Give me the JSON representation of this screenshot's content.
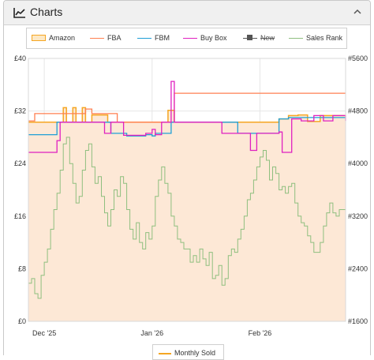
{
  "panel": {
    "title": "Charts",
    "title_icon": "line-chart-icon",
    "collapse_icon": "chevron-up-icon"
  },
  "chart_data": {
    "type": "line",
    "y_left": {
      "range": [
        0,
        40
      ],
      "ticks": [
        0,
        8,
        16,
        24,
        32,
        40
      ],
      "tick_labels": [
        "£0",
        "£8",
        "£16",
        "£24",
        "£32",
        "£40"
      ]
    },
    "y_right": {
      "range": [
        1600,
        5600
      ],
      "ticks": [
        1600,
        2400,
        3200,
        4000,
        4800,
        5600
      ],
      "tick_labels": [
        "#1600",
        "#2400",
        "#3200",
        "#4000",
        "#4800",
        "#5600"
      ]
    },
    "x_axis": {
      "range": [
        0,
        100
      ],
      "ticks": [
        5,
        39,
        73
      ],
      "tick_labels": [
        "Dec '25",
        "Jan '26",
        "Feb '26"
      ]
    },
    "grid": true,
    "legend": [
      {
        "name": "Amazon",
        "color": "#f5a623",
        "style": "area"
      },
      {
        "name": "FBA",
        "color": "#ff7f50",
        "style": "line"
      },
      {
        "name": "FBM",
        "color": "#1f9fd6",
        "style": "line"
      },
      {
        "name": "Buy Box",
        "color": "#e020c0",
        "style": "line"
      },
      {
        "name": "New",
        "color": "#555555",
        "style": "marker",
        "disabled": true
      },
      {
        "name": "Sales Rank",
        "color": "#8fbf7f",
        "style": "line"
      }
    ],
    "bottom_legend": [
      {
        "name": "Monthly Sold",
        "color": "#f5a623"
      }
    ],
    "series": [
      {
        "name": "Amazon",
        "axis": "left",
        "x": [
          0,
          2,
          10,
          11,
          12,
          14,
          15,
          17,
          18,
          20,
          24,
          25,
          26,
          30,
          37,
          42,
          44,
          46,
          55,
          57,
          66,
          76,
          79,
          82,
          85,
          88,
          92,
          99,
          100
        ],
        "y": [
          30.3,
          30.3,
          30.3,
          32.5,
          30.3,
          32.5,
          30.3,
          32.5,
          30.3,
          31.4,
          31.4,
          30.3,
          30.3,
          30.3,
          30.3,
          30.3,
          32.1,
          30.3,
          30.3,
          30.3,
          30.3,
          30.3,
          30.8,
          31.3,
          31.4,
          30.4,
          31.3,
          31.3,
          31.3
        ]
      },
      {
        "name": "FBA",
        "axis": "left",
        "x": [
          0,
          2,
          9,
          18,
          20,
          25,
          28,
          37,
          42,
          44,
          46,
          56,
          66,
          70,
          75,
          79,
          80,
          81,
          100
        ],
        "y": [
          30.5,
          31.6,
          31.6,
          32.3,
          31.6,
          31.6,
          30.3,
          30.3,
          30.3,
          30.3,
          34.7,
          34.7,
          34.7,
          34.7,
          34.7,
          34.7,
          34.7,
          34.7,
          34.7
        ]
      },
      {
        "name": "FBM",
        "axis": "left",
        "x": [
          0,
          7,
          9,
          18,
          26,
          31,
          34,
          37,
          39,
          40,
          45,
          46,
          56,
          57,
          61,
          66,
          69,
          70,
          71,
          72,
          76,
          79,
          82,
          87,
          92,
          100
        ],
        "y": [
          28.4,
          28.4,
          30.3,
          30.3,
          28.6,
          28.2,
          28.2,
          28.4,
          28.2,
          28.6,
          30.3,
          30.3,
          30.3,
          30.3,
          30.3,
          28.6,
          28.6,
          28.6,
          28.6,
          28.6,
          28.6,
          30.8,
          31.0,
          31.0,
          31.0,
          31.0
        ]
      },
      {
        "name": "Buy Box",
        "axis": "left",
        "x": [
          0,
          7,
          9,
          10,
          12,
          18,
          24,
          26,
          30,
          33,
          35,
          37,
          39,
          40,
          42,
          45,
          46,
          47,
          55,
          57,
          61,
          66,
          69,
          70,
          72,
          75,
          78,
          79,
          80,
          83,
          86,
          90,
          93,
          96,
          100
        ],
        "y": [
          25.7,
          25.7,
          27.5,
          30.3,
          30.3,
          30.3,
          28.6,
          30.3,
          28.3,
          28.3,
          28.3,
          28.6,
          29.2,
          28.4,
          30.3,
          36.5,
          30.3,
          30.3,
          30.3,
          30.3,
          28.6,
          28.6,
          28.6,
          26.0,
          28.6,
          28.6,
          28.6,
          28.8,
          25.7,
          30.8,
          30.5,
          31.3,
          30.5,
          31.3,
          30.5
        ]
      },
      {
        "name": "Sales Rank",
        "axis": "right",
        "x": [
          0,
          1,
          2,
          3,
          4,
          5,
          6,
          7,
          8,
          9,
          10,
          11,
          12,
          13,
          14,
          15,
          16,
          17,
          18,
          19,
          20,
          21,
          22,
          23,
          24,
          25,
          26,
          27,
          28,
          29,
          30,
          31,
          32,
          33,
          34,
          35,
          36,
          37,
          38,
          39,
          40,
          41,
          42,
          43,
          44,
          45,
          46,
          47,
          48,
          49,
          50,
          51,
          52,
          53,
          54,
          55,
          56,
          57,
          58,
          59,
          60,
          61,
          62,
          63,
          64,
          65,
          66,
          67,
          68,
          69,
          70,
          71,
          72,
          73,
          74,
          75,
          76,
          77,
          78,
          79,
          80,
          81,
          82,
          83,
          84,
          85,
          86,
          87,
          88,
          89,
          90,
          91,
          92,
          93,
          94,
          95,
          96,
          97,
          98,
          99,
          100
        ],
        "y": [
          2180,
          2250,
          2020,
          1950,
          2300,
          2500,
          2700,
          3000,
          3300,
          3550,
          3900,
          4300,
          4400,
          4000,
          3700,
          3400,
          3500,
          3900,
          4200,
          4300,
          3950,
          3700,
          3800,
          3500,
          3250,
          3050,
          3300,
          3600,
          3500,
          3800,
          3700,
          3300,
          3000,
          2850,
          3100,
          2800,
          2700,
          2950,
          2850,
          3050,
          3500,
          3750,
          3950,
          3700,
          3550,
          3200,
          3050,
          2850,
          2800,
          2700,
          2700,
          2500,
          2600,
          2500,
          2700,
          2550,
          2450,
          2650,
          2250,
          2300,
          2450,
          2150,
          2250,
          2600,
          2700,
          2650,
          2850,
          3000,
          3200,
          3450,
          3550,
          3750,
          3950,
          4100,
          4200,
          4050,
          3750,
          3950,
          3850,
          3600,
          3650,
          3550,
          3650,
          3700,
          3400,
          3200,
          3100,
          3050,
          2900,
          2800,
          2650,
          2650,
          2800,
          3050,
          3250,
          3400,
          3250,
          3200,
          3300,
          3300,
          3350
        ]
      }
    ]
  }
}
